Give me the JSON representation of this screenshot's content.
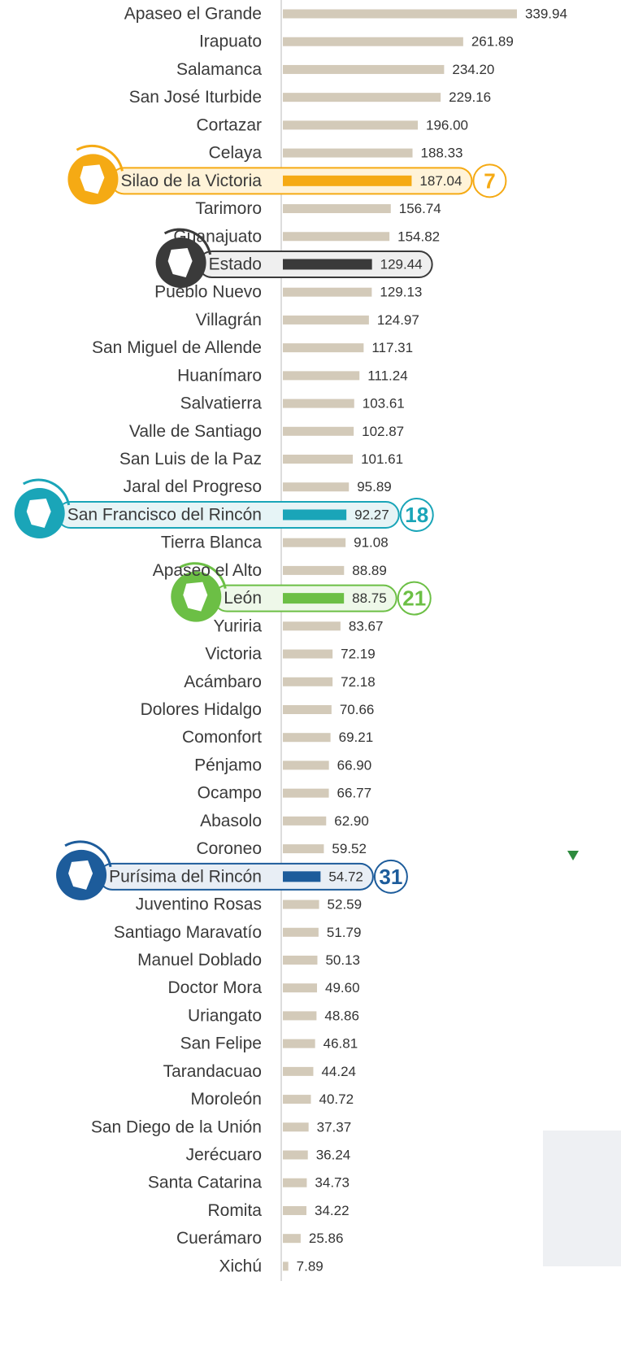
{
  "chart_data": {
    "type": "bar",
    "orientation": "horizontal",
    "categories": [
      "Apaseo el Grande",
      "Irapuato",
      "Salamanca",
      "San José Iturbide",
      "Cortazar",
      "Celaya",
      "Silao de la Victoria",
      "Tarimoro",
      "Guanajuato",
      "Estado",
      "Pueblo Nuevo",
      "Villagrán",
      "San Miguel de Allende",
      "Huanímaro",
      "Salvatierra",
      "Valle de Santiago",
      "San Luis de la Paz",
      "Jaral del Progreso",
      "San Francisco del Rincón",
      "Tierra Blanca",
      "Apaseo el Alto",
      "León",
      "Yuriria",
      "Victoria",
      "Acámbaro",
      "Dolores Hidalgo",
      "Comonfort",
      "Pénjamo",
      "Ocampo",
      "Abasolo",
      "Coroneo",
      "Purísima del Rincón",
      "Juventino Rosas",
      "Santiago Maravatío",
      "Manuel Doblado",
      "Doctor Mora",
      "Uriangato",
      "San Felipe",
      "Tarandacuao",
      "Moroleón",
      "San Diego de la Unión",
      "Jerécuaro",
      "Santa Catarina",
      "Romita",
      "Cuerámaro",
      "Xichú"
    ],
    "values": [
      339.94,
      261.89,
      234.2,
      229.16,
      196,
      188.33,
      187.04,
      156.74,
      154.82,
      129.44,
      129.13,
      124.97,
      117.31,
      111.24,
      103.61,
      102.87,
      101.61,
      95.89,
      92.27,
      91.08,
      88.89,
      88.75,
      83.67,
      72.19,
      72.18,
      70.66,
      69.21,
      66.9,
      66.77,
      62.9,
      59.52,
      54.72,
      52.59,
      51.79,
      50.13,
      49.6,
      48.86,
      46.81,
      44.24,
      40.72,
      37.37,
      36.24,
      34.73,
      34.22,
      25.86,
      7.89
    ],
    "value_labels": [
      "339.94",
      "261.89",
      "234.20",
      "229.16",
      "196.00",
      "188.33",
      "187.04",
      "156.74",
      "154.82",
      "129.44",
      "129.13",
      "124.97",
      "117.31",
      "111.24",
      "103.61",
      "102.87",
      "101.61",
      "95.89",
      "92.27",
      "91.08",
      "88.89",
      "88.75",
      "83.67",
      "72.19",
      "72.18",
      "70.66",
      "69.21",
      "66.90",
      "66.77",
      "62.90",
      "59.52",
      "54.72",
      "52.59",
      "51.79",
      "50.13",
      "49.60",
      "48.86",
      "46.81",
      "44.24",
      "40.72",
      "37.37",
      "36.24",
      "34.73",
      "34.22",
      "25.86",
      "7.89"
    ],
    "color": "#d3cab9",
    "xlim": [
      0,
      340
    ],
    "highlights": [
      {
        "index": 6,
        "rank": 7,
        "color": "#f5aa14",
        "fill": "#fff3d8"
      },
      {
        "index": 9,
        "color": "#3a3a3a",
        "fill": "#efefef"
      },
      {
        "index": 18,
        "rank": 18,
        "color": "#1aa5b8",
        "fill": "#e6f4f6"
      },
      {
        "index": 21,
        "rank": 21,
        "color": "#6cbf45",
        "fill": "#eef8e9"
      },
      {
        "index": 31,
        "rank": 31,
        "color": "#1d5c9b",
        "fill": "#e8eef5"
      }
    ]
  }
}
